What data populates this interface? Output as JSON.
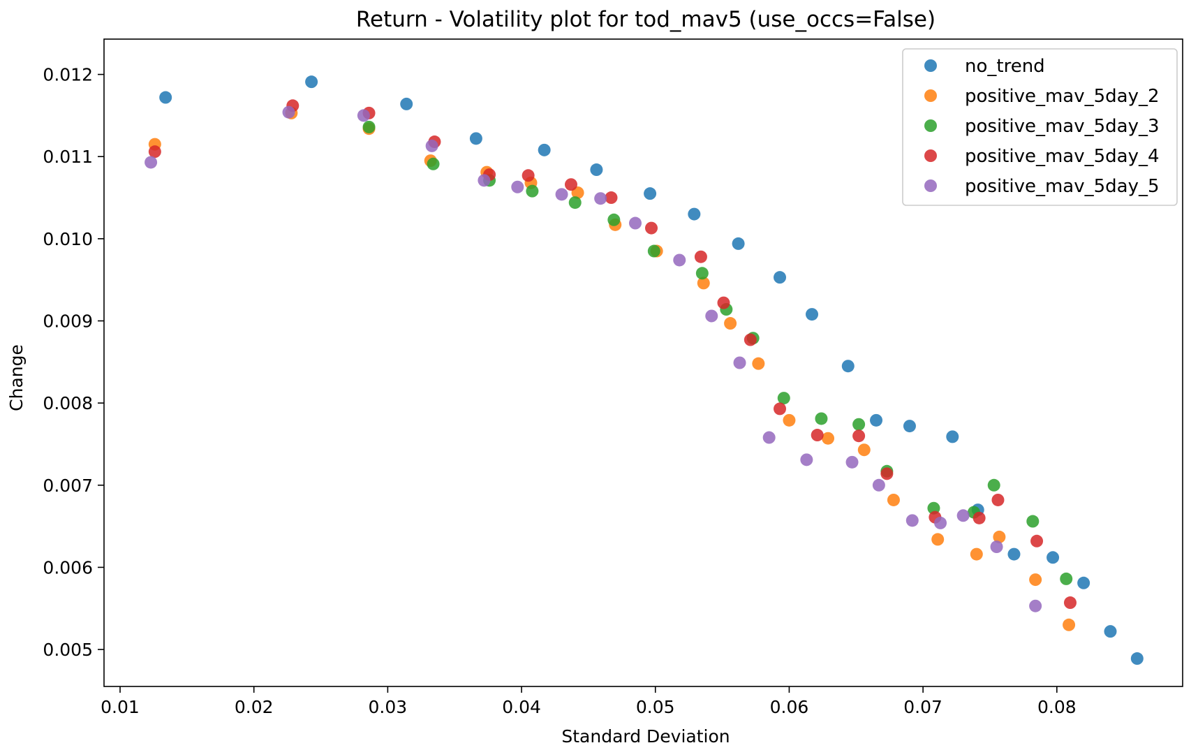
{
  "chart_data": {
    "type": "scatter",
    "title": "Return - Volatility plot for tod_mav5 (use_occs=False)",
    "xlabel": "Standard Deviation",
    "ylabel": "Change",
    "xlim": [
      0.0088,
      0.0894
    ],
    "ylim": [
      0.00455,
      0.01243
    ],
    "xticks": [
      0.01,
      0.02,
      0.03,
      0.04,
      0.05,
      0.06,
      0.07,
      0.08
    ],
    "xtick_labels": [
      "0.01",
      "0.02",
      "0.03",
      "0.04",
      "0.05",
      "0.06",
      "0.07",
      "0.08"
    ],
    "yticks": [
      0.005,
      0.006,
      0.007,
      0.008,
      0.009,
      0.01,
      0.011,
      0.012
    ],
    "ytick_labels": [
      "0.005",
      "0.006",
      "0.007",
      "0.008",
      "0.009",
      "0.010",
      "0.011",
      "0.012"
    ],
    "grid": false,
    "legend_position": "top-right",
    "series": [
      {
        "name": "no_trend",
        "color": "#1f77b4",
        "points": [
          [
            0.0134,
            0.01172
          ],
          [
            0.0243,
            0.01191
          ],
          [
            0.0314,
            0.01164
          ],
          [
            0.0366,
            0.01122
          ],
          [
            0.0417,
            0.01108
          ],
          [
            0.0456,
            0.01084
          ],
          [
            0.0496,
            0.01055
          ],
          [
            0.0529,
            0.0103
          ],
          [
            0.0562,
            0.00994
          ],
          [
            0.0593,
            0.00953
          ],
          [
            0.0617,
            0.00908
          ],
          [
            0.0644,
            0.00845
          ],
          [
            0.0665,
            0.00779
          ],
          [
            0.069,
            0.00772
          ],
          [
            0.0722,
            0.00759
          ],
          [
            0.0741,
            0.0067
          ],
          [
            0.0768,
            0.00616
          ],
          [
            0.0797,
            0.00612
          ],
          [
            0.082,
            0.00581
          ],
          [
            0.084,
            0.00522
          ],
          [
            0.086,
            0.00489
          ]
        ]
      },
      {
        "name": "positive_mav_5day_2",
        "color": "#ff7f0e",
        "points": [
          [
            0.0126,
            0.01115
          ],
          [
            0.0228,
            0.01153
          ],
          [
            0.0286,
            0.01134
          ],
          [
            0.0332,
            0.01095
          ],
          [
            0.0374,
            0.01081
          ],
          [
            0.0407,
            0.01068
          ],
          [
            0.0442,
            0.01056
          ],
          [
            0.047,
            0.01017
          ],
          [
            0.0501,
            0.00985
          ],
          [
            0.0536,
            0.00946
          ],
          [
            0.0556,
            0.00897
          ],
          [
            0.0577,
            0.00848
          ],
          [
            0.06,
            0.00779
          ],
          [
            0.0629,
            0.00757
          ],
          [
            0.0656,
            0.00743
          ],
          [
            0.0678,
            0.00682
          ],
          [
            0.0711,
            0.00634
          ],
          [
            0.074,
            0.00616
          ],
          [
            0.0757,
            0.00637
          ],
          [
            0.0784,
            0.00585
          ],
          [
            0.0809,
            0.0053
          ]
        ]
      },
      {
        "name": "positive_mav_5day_3",
        "color": "#2ca02c",
        "points": [
          [
            0.0286,
            0.01136
          ],
          [
            0.0334,
            0.01091
          ],
          [
            0.0376,
            0.01071
          ],
          [
            0.0408,
            0.01058
          ],
          [
            0.044,
            0.01044
          ],
          [
            0.0469,
            0.01023
          ],
          [
            0.0499,
            0.00985
          ],
          [
            0.0535,
            0.00958
          ],
          [
            0.0553,
            0.00914
          ],
          [
            0.0573,
            0.00879
          ],
          [
            0.0596,
            0.00806
          ],
          [
            0.0624,
            0.00781
          ],
          [
            0.0652,
            0.00774
          ],
          [
            0.0673,
            0.00717
          ],
          [
            0.0708,
            0.00672
          ],
          [
            0.0738,
            0.00667
          ],
          [
            0.0753,
            0.007
          ],
          [
            0.0782,
            0.00656
          ],
          [
            0.0807,
            0.00586
          ]
        ]
      },
      {
        "name": "positive_mav_5day_4",
        "color": "#d62728",
        "points": [
          [
            0.0126,
            0.01106
          ],
          [
            0.0229,
            0.01162
          ],
          [
            0.0286,
            0.01153
          ],
          [
            0.0335,
            0.01118
          ],
          [
            0.0376,
            0.01078
          ],
          [
            0.0405,
            0.01077
          ],
          [
            0.0437,
            0.01066
          ],
          [
            0.0467,
            0.0105
          ],
          [
            0.0497,
            0.01013
          ],
          [
            0.0534,
            0.00978
          ],
          [
            0.0551,
            0.00922
          ],
          [
            0.0571,
            0.00877
          ],
          [
            0.0593,
            0.00793
          ],
          [
            0.0621,
            0.00761
          ],
          [
            0.0652,
            0.0076
          ],
          [
            0.0673,
            0.00714
          ],
          [
            0.0709,
            0.00661
          ],
          [
            0.0742,
            0.0066
          ],
          [
            0.0756,
            0.00682
          ],
          [
            0.0785,
            0.00632
          ],
          [
            0.081,
            0.00557
          ]
        ]
      },
      {
        "name": "positive_mav_5day_5",
        "color": "#9467bd",
        "points": [
          [
            0.0123,
            0.01093
          ],
          [
            0.0226,
            0.01154
          ],
          [
            0.0282,
            0.0115
          ],
          [
            0.0333,
            0.01113
          ],
          [
            0.0372,
            0.01071
          ],
          [
            0.0397,
            0.01063
          ],
          [
            0.043,
            0.01054
          ],
          [
            0.0459,
            0.01049
          ],
          [
            0.0485,
            0.01019
          ],
          [
            0.0518,
            0.00974
          ],
          [
            0.0542,
            0.00906
          ],
          [
            0.0563,
            0.00849
          ],
          [
            0.0585,
            0.00758
          ],
          [
            0.0613,
            0.00731
          ],
          [
            0.0647,
            0.00728
          ],
          [
            0.0667,
            0.007
          ],
          [
            0.0692,
            0.00657
          ],
          [
            0.0713,
            0.00654
          ],
          [
            0.073,
            0.00663
          ],
          [
            0.0755,
            0.00625
          ],
          [
            0.0784,
            0.00553
          ]
        ]
      }
    ]
  }
}
